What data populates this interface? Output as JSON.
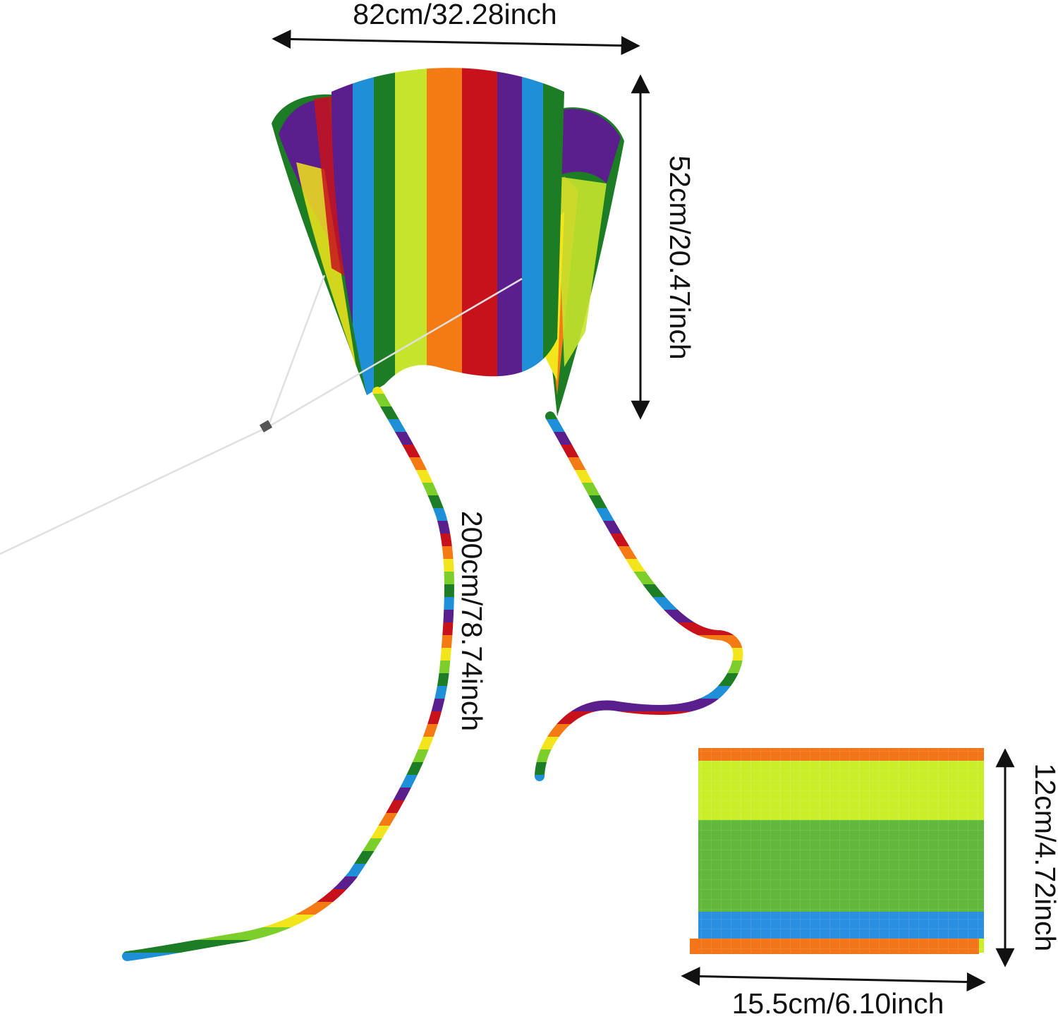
{
  "dimensions": {
    "kite_width": "82cm/32.28inch",
    "kite_height": "52cm/20.47inch",
    "tail_length": "200cm/78.74inch",
    "bag_height": "12cm/4.72inch",
    "bag_width": "15.5cm/6.10inch"
  },
  "colors": {
    "purple": "#5a1f8c",
    "blue": "#1f8fd8",
    "green": "#1d7d24",
    "lime": "#c6e42c",
    "yellow": "#f2e51b",
    "orange": "#f47a14",
    "red": "#c7121c",
    "bag_lime": "#c9ef2a",
    "bag_green": "#62b83a",
    "bag_blue": "#2a8fe0",
    "bag_orange": "#f2751a",
    "arrow": "#111111"
  }
}
